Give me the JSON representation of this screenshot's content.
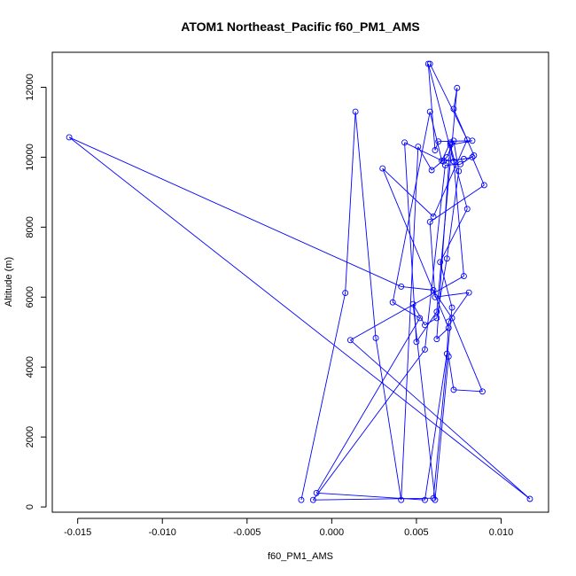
{
  "chart_data": {
    "type": "line",
    "title": "ATOM1 Northeast_Pacific f60_PM1_AMS",
    "xlabel": "f60_PM1_AMS",
    "ylabel": "Altitude (m)",
    "xlim": [
      -0.0165,
      0.0128
    ],
    "ylim": [
      -150,
      13000
    ],
    "xticks": [
      -0.015,
      -0.01,
      -0.005,
      0.0,
      0.005,
      0.01
    ],
    "xtick_labels": [
      "-0.015",
      "-0.010",
      "-0.005",
      "0.000",
      "0.005",
      "0.010"
    ],
    "yticks": [
      0,
      2000,
      4000,
      6000,
      8000,
      10000,
      12000
    ],
    "ytick_labels": [
      "0",
      "2000",
      "4000",
      "6000",
      "8000",
      "10000",
      "12000"
    ],
    "grid": false,
    "colors": {
      "series": "#0000ff",
      "axis": "#000000",
      "background": "#ffffff"
    },
    "series": [
      {
        "marker": "open-circle",
        "points": [
          [
            -0.0018,
            200
          ],
          [
            0.0008,
            6120
          ],
          [
            0.0014,
            11300
          ],
          [
            0.0026,
            4830
          ],
          [
            0.0041,
            200
          ],
          [
            0.0051,
            10300
          ],
          [
            0.0059,
            9630
          ],
          [
            0.0068,
            10000
          ],
          [
            0.0072,
            10470
          ],
          [
            0.0075,
            9600
          ],
          [
            0.0068,
            7100
          ],
          [
            0.0062,
            5400
          ],
          [
            0.0055,
            5200
          ],
          [
            0.0048,
            5800
          ],
          [
            0.0061,
            200
          ],
          [
            0.0069,
            4300
          ],
          [
            0.0072,
            3350
          ],
          [
            0.0089,
            3300
          ],
          [
            0.0071,
            5400
          ],
          [
            0.006,
            6200
          ],
          [
            0.0041,
            6300
          ],
          [
            -0.0155,
            10570
          ],
          [
            0.0117,
            230
          ],
          [
            0.0011,
            4770
          ],
          [
            0.0078,
            6600
          ],
          [
            0.0072,
            9880
          ],
          [
            0.0057,
            12670
          ],
          [
            0.0061,
            10200
          ],
          [
            0.0063,
            10450
          ],
          [
            0.0083,
            10470
          ],
          [
            0.007,
            10350
          ],
          [
            0.008,
            8520
          ],
          [
            0.0064,
            7000
          ],
          [
            0.0071,
            5700
          ],
          [
            0.006,
            250
          ],
          [
            -0.0011,
            200
          ],
          [
            0.0055,
            4500
          ],
          [
            0.0067,
            9770
          ],
          [
            0.0076,
            9800
          ],
          [
            0.0084,
            10050
          ],
          [
            0.0072,
            11380
          ],
          [
            0.0074,
            11980
          ],
          [
            0.0062,
            5580
          ],
          [
            0.005,
            4720
          ],
          [
            0.0043,
            10420
          ],
          [
            0.0066,
            9880
          ],
          [
            0.0078,
            9950
          ],
          [
            0.0083,
            10000
          ],
          [
            0.009,
            9200
          ],
          [
            0.0058,
            8150
          ],
          [
            0.0061,
            6000
          ],
          [
            0.0081,
            6130
          ],
          [
            0.0069,
            5300
          ],
          [
            0.0068,
            4380
          ],
          [
            0.0055,
            200
          ],
          [
            -0.0009,
            400
          ],
          [
            0.0052,
            5400
          ],
          [
            0.0036,
            5850
          ],
          [
            0.0058,
            11300
          ],
          [
            0.0065,
            9900
          ],
          [
            0.007,
            10420
          ],
          [
            0.0062,
            4800
          ],
          [
            0.0069,
            5120
          ],
          [
            0.003,
            9680
          ],
          [
            0.006,
            8300
          ],
          [
            0.008,
            10500
          ],
          [
            0.0058,
            12670
          ]
        ]
      }
    ]
  }
}
